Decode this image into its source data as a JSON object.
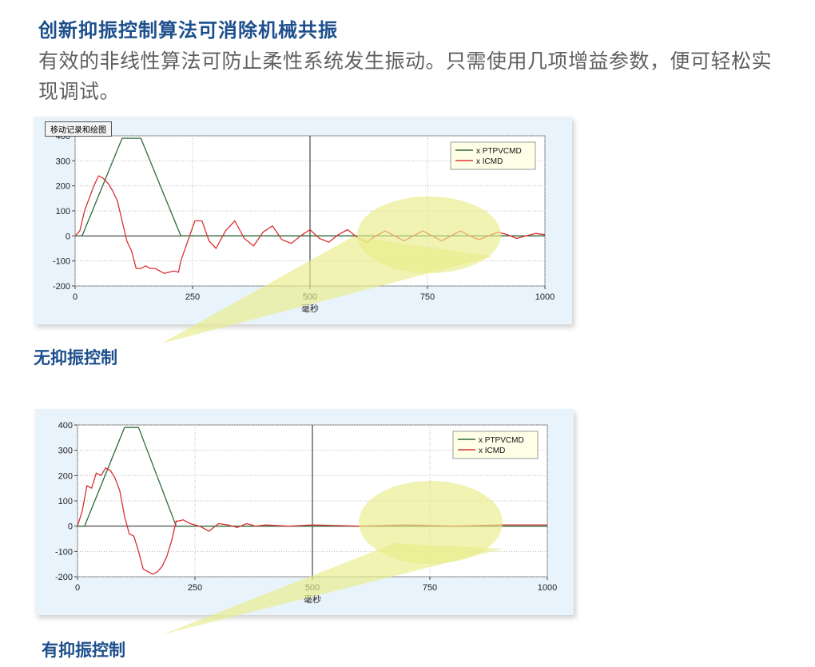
{
  "heading": "创新抑振控制算法可消除机械共振",
  "description": "有效的非线性算法可防止柔性系统发生振动。只需使用几项增益参数，便可轻松实现调试。",
  "toolbar_button": "移动记录和绘图",
  "colors": {
    "heading": "#1d4f8c",
    "ptpvcmd": "#2e6b3a",
    "icmd": "#d93030",
    "highlight": "#e8ec88"
  },
  "chart_data": [
    {
      "type": "line",
      "caption": "无抑振控制",
      "xlabel": "毫秒",
      "ylabel": "",
      "xlim": [
        0,
        1000
      ],
      "ylim": [
        -200,
        400
      ],
      "xticks": [
        0,
        250,
        500,
        750,
        1000
      ],
      "yticks": [
        -200,
        -100,
        0,
        100,
        200,
        300,
        400
      ],
      "legend_position": "top-right",
      "grid": true,
      "series": [
        {
          "name": "x PTPVCMD",
          "x": [
            0,
            15,
            100,
            140,
            225,
            1000
          ],
          "y": [
            0,
            0,
            390,
            390,
            0,
            0
          ]
        },
        {
          "name": "x ICMD",
          "x": [
            0,
            10,
            20,
            30,
            40,
            50,
            60,
            70,
            80,
            90,
            100,
            110,
            120,
            130,
            140,
            150,
            160,
            170,
            180,
            190,
            200,
            210,
            220,
            225,
            240,
            255,
            270,
            285,
            300,
            320,
            340,
            360,
            380,
            400,
            420,
            440,
            460,
            480,
            500,
            520,
            540,
            560,
            580,
            600,
            620,
            640,
            660,
            680,
            700,
            720,
            740,
            760,
            780,
            800,
            820,
            840,
            860,
            880,
            900,
            920,
            940,
            960,
            980,
            1000
          ],
          "y": [
            0,
            20,
            100,
            150,
            200,
            240,
            230,
            210,
            180,
            140,
            60,
            -20,
            -60,
            -130,
            -130,
            -120,
            -130,
            -130,
            -140,
            -150,
            -145,
            -140,
            -145,
            -100,
            -20,
            60,
            60,
            -20,
            -50,
            20,
            60,
            -10,
            -40,
            15,
            40,
            -15,
            -30,
            0,
            25,
            -10,
            -25,
            5,
            25,
            -5,
            -25,
            0,
            20,
            0,
            -20,
            0,
            20,
            0,
            -20,
            0,
            20,
            0,
            -15,
            0,
            15,
            5,
            -10,
            0,
            10,
            5
          ]
        }
      ]
    },
    {
      "type": "line",
      "caption": "有抑振控制",
      "xlabel": "毫秒",
      "ylabel": "",
      "xlim": [
        0,
        1000
      ],
      "ylim": [
        -200,
        400
      ],
      "xticks": [
        0,
        250,
        500,
        750,
        1000
      ],
      "yticks": [
        -200,
        -100,
        0,
        100,
        200,
        300,
        400
      ],
      "legend_position": "top-right",
      "grid": true,
      "series": [
        {
          "name": "x PTPVCMD",
          "x": [
            0,
            15,
            100,
            130,
            210,
            1000
          ],
          "y": [
            0,
            0,
            390,
            390,
            0,
            0
          ]
        },
        {
          "name": "x ICMD",
          "x": [
            0,
            10,
            20,
            30,
            40,
            50,
            60,
            70,
            80,
            90,
            100,
            110,
            120,
            130,
            140,
            150,
            160,
            170,
            180,
            190,
            200,
            210,
            215,
            225,
            240,
            260,
            280,
            300,
            320,
            340,
            360,
            380,
            400,
            450,
            500,
            600,
            700,
            800,
            900,
            1000
          ],
          "y": [
            0,
            60,
            160,
            150,
            210,
            200,
            230,
            220,
            190,
            140,
            40,
            -30,
            -40,
            -100,
            -170,
            -180,
            -190,
            -180,
            -160,
            -120,
            -60,
            20,
            20,
            25,
            10,
            0,
            -20,
            10,
            5,
            -5,
            10,
            0,
            5,
            0,
            5,
            0,
            5,
            0,
            5,
            5
          ]
        }
      ]
    }
  ]
}
